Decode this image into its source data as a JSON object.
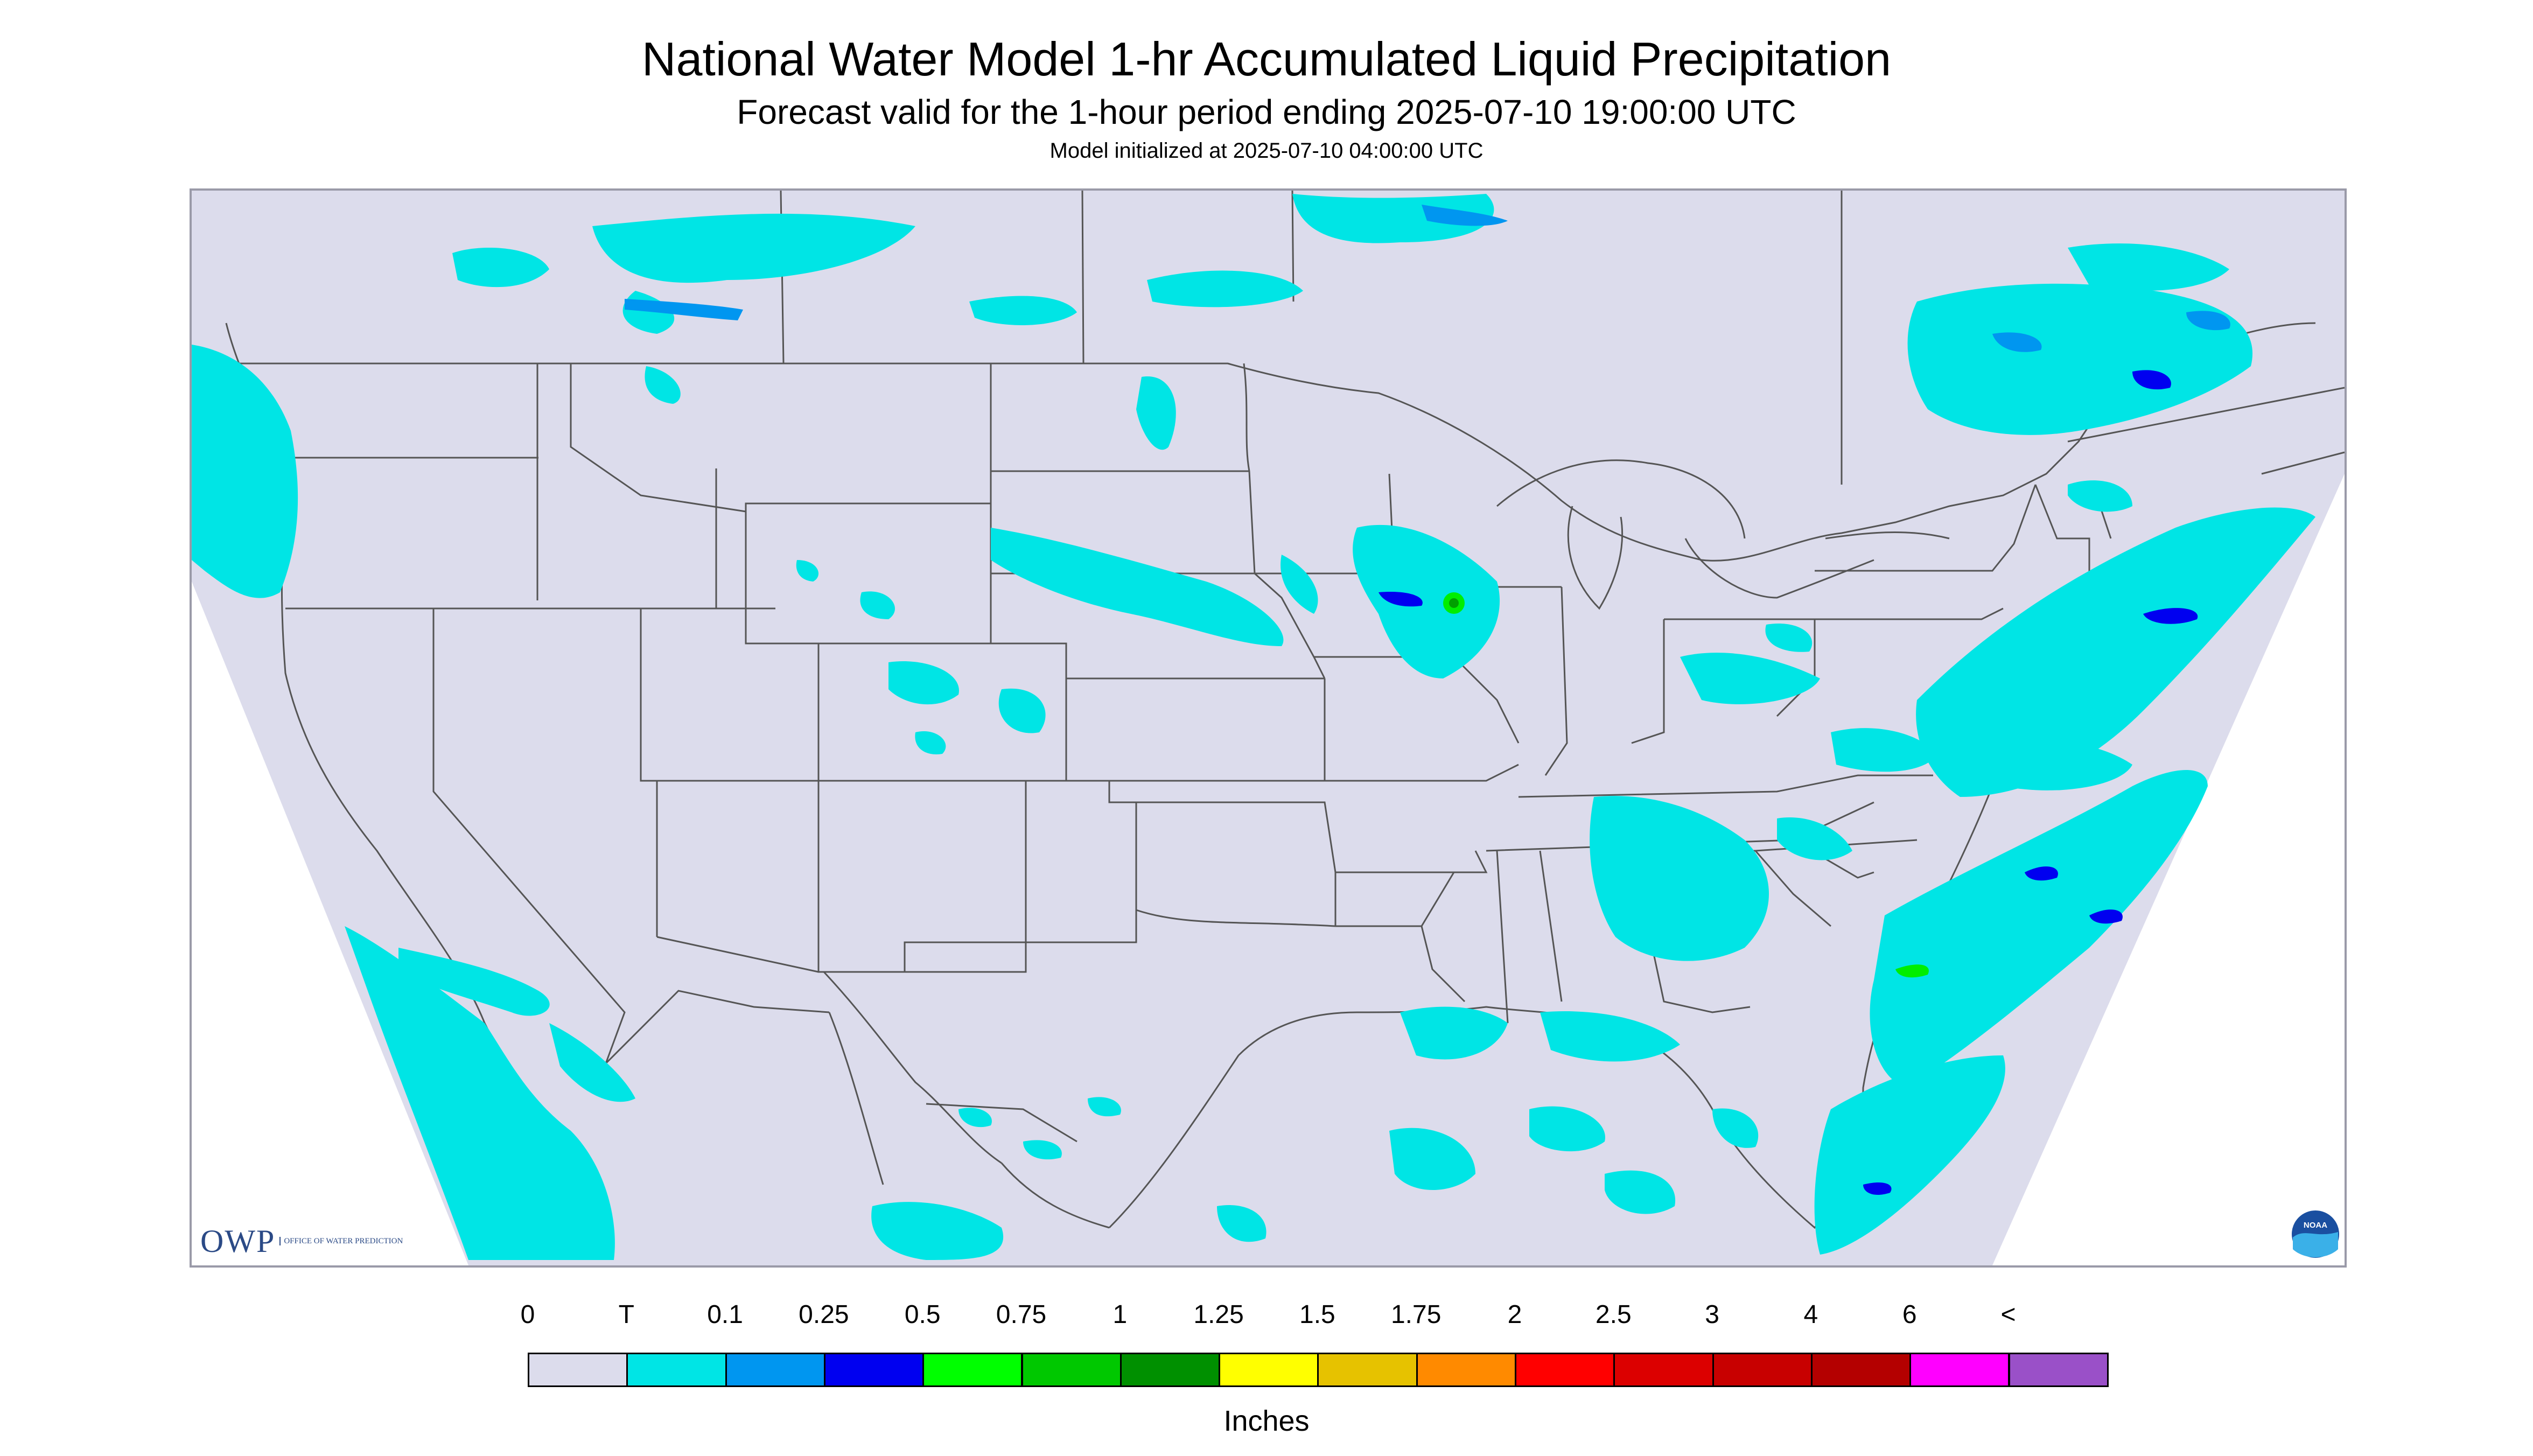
{
  "header": {
    "title": "National Water Model 1-hr Accumulated Liquid Precipitation",
    "subtitle": "Forecast valid for the 1-hour period ending 2025-07-10 19:00:00 UTC",
    "initialized": "Model initialized at 2025-07-10 04:00:00 UTC"
  },
  "map": {
    "background_color": "#dcdcec",
    "boundary_color": "#555555",
    "frame_color": "#9a9aa8",
    "precip_colors": {
      "trace": "#00e5e5",
      "light": "#0096f0",
      "moderate": "#0000f0",
      "heavy": "#00ee00"
    }
  },
  "legend": {
    "ticks": [
      "0",
      "T",
      "0.1",
      "0.25",
      "0.5",
      "0.75",
      "1",
      "1.25",
      "1.5",
      "1.75",
      "2",
      "2.5",
      "3",
      "4",
      "6",
      "<"
    ],
    "colors": [
      "#dcdcec",
      "#00e5e5",
      "#0096f0",
      "#0000f0",
      "#00ff00",
      "#00c800",
      "#009000",
      "#ffff00",
      "#e6c200",
      "#ff8a00",
      "#ff0000",
      "#dc0000",
      "#c80000",
      "#b40000",
      "#ff00ff",
      "#9a50c8"
    ],
    "unit": "Inches"
  },
  "logos": {
    "owp": {
      "text": "OWP",
      "full": "OFFICE OF WATER PREDICTION"
    },
    "noaa": {
      "text": "NOAA"
    }
  }
}
